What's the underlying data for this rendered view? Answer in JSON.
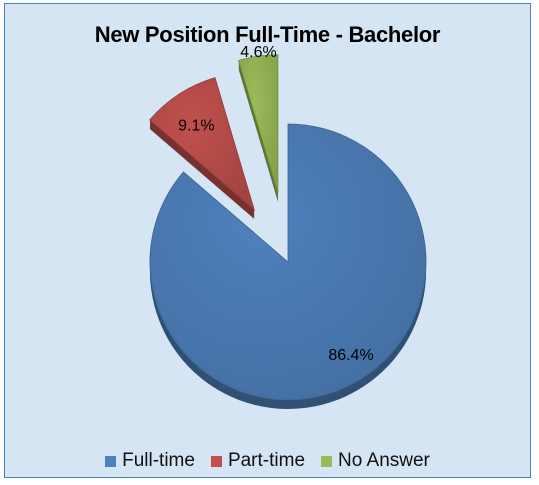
{
  "chart_data": {
    "type": "pie",
    "title": "New Position Full-Time - Bachelor",
    "categories": [
      "Full-time",
      "Part-time",
      "No Answer"
    ],
    "values": [
      86.4,
      9.1,
      4.6
    ],
    "data_labels": [
      "86.4%",
      "9.1%",
      "4.6%"
    ],
    "colors": [
      "#4f81bd",
      "#c0504d",
      "#9bbb59"
    ],
    "exploded": [
      "Part-time",
      "No Answer"
    ],
    "legend_position": "bottom",
    "style": "3d-exploded"
  }
}
